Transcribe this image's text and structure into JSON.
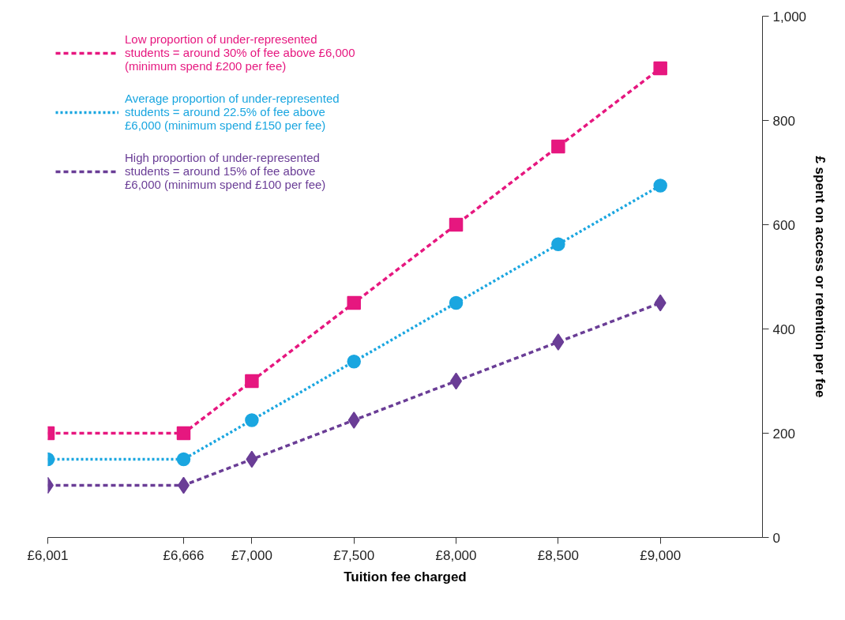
{
  "chart_data": {
    "type": "line",
    "xlabel": "Tuition fee charged",
    "ylabel": "£ spent on access or retention per fee",
    "x": [
      6001,
      6666,
      7000,
      7500,
      8000,
      8500,
      9000
    ],
    "series": [
      {
        "name": "Low proportion of under-represented\nstudents = around 30% of fee above £6,000\n(minimum spend £200 per fee)",
        "color": "#e6177f",
        "marker": "square",
        "line_style": "dashed",
        "values": [
          200,
          200,
          300,
          450,
          600,
          750,
          900
        ]
      },
      {
        "name": "Average proportion of under-represented\nstudents = around 22.5% of fee above\n£6,000 (minimum spend £150 per fee)",
        "color": "#1aa6e0",
        "marker": "circle",
        "line_style": "dotted",
        "values": [
          150,
          150,
          225,
          337.5,
          450,
          562.5,
          675
        ]
      },
      {
        "name": "High proportion of under-represented\nstudents = around 15% of fee above\n£6,000 (minimum spend £100 per fee)",
        "color": "#6a3d96",
        "marker": "diamond",
        "line_style": "dashed",
        "values": [
          100,
          100,
          150,
          225,
          300,
          375,
          450
        ]
      }
    ],
    "xlim": [
      6001,
      9500
    ],
    "xticks": [
      {
        "value": 6001,
        "label": "£6,001"
      },
      {
        "value": 6666,
        "label": "£6,666"
      },
      {
        "value": 7000,
        "label": "£7,000"
      },
      {
        "value": 7500,
        "label": "£7,500"
      },
      {
        "value": 8000,
        "label": "£8,000"
      },
      {
        "value": 8500,
        "label": "£8,500"
      },
      {
        "value": 9000,
        "label": "£9,000"
      }
    ],
    "ylim": [
      0,
      1000
    ],
    "yticks": [
      0,
      200,
      400,
      600,
      800,
      {
        "value": 1000,
        "label": "1,000"
      }
    ],
    "grid": false,
    "legend": "top left"
  }
}
